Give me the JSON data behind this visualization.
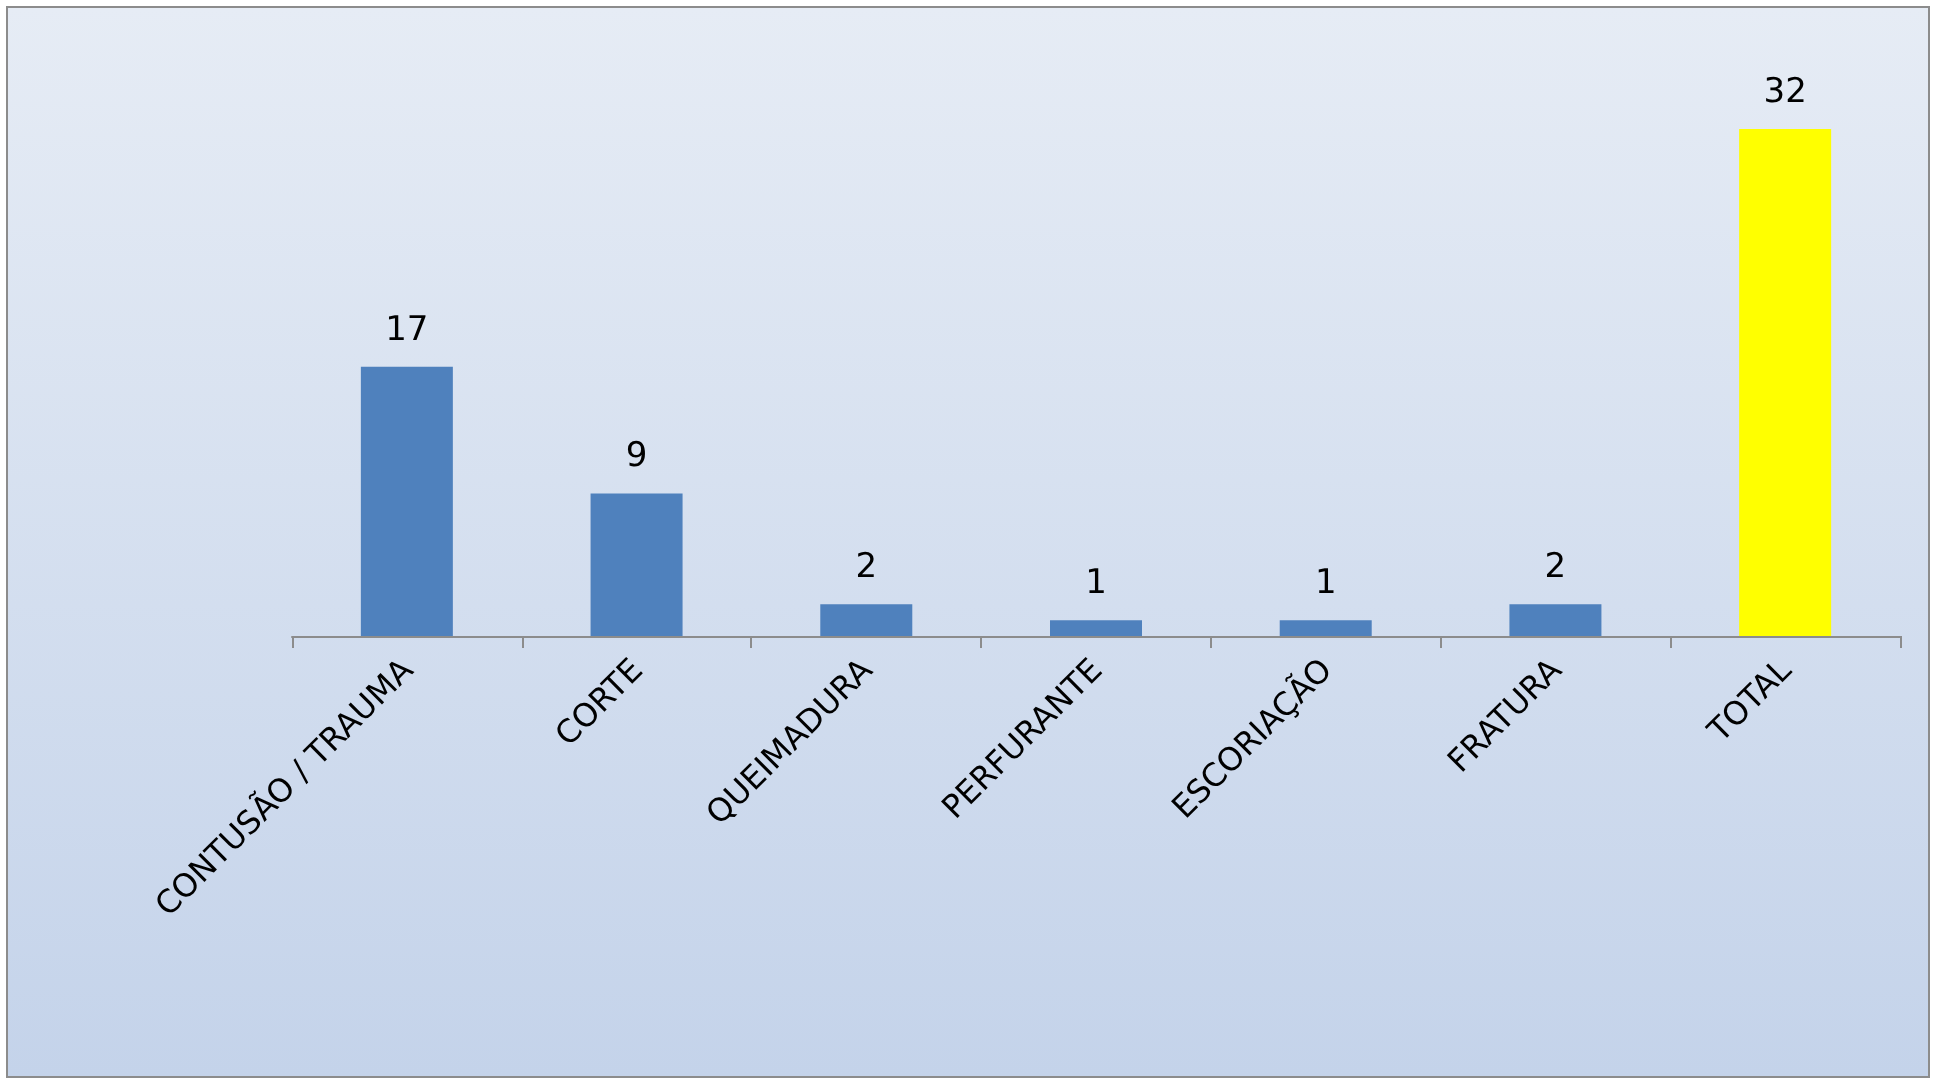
{
  "chart_data": {
    "type": "bar",
    "categories": [
      "CONTUSÃO / TRAUMA",
      "CORTE",
      "QUEIMADURA",
      "PERFURANTE",
      "ESCORIAÇÃO",
      "FRATURA",
      "TOTAL"
    ],
    "values": [
      17,
      9,
      2,
      1,
      1,
      2,
      32
    ],
    "colors": [
      "#4f81bd",
      "#4f81bd",
      "#4f81bd",
      "#4f81bd",
      "#4f81bd",
      "#4f81bd",
      "#ffff00"
    ],
    "data_labels": true,
    "tick_labels": "x",
    "grid": false
  }
}
